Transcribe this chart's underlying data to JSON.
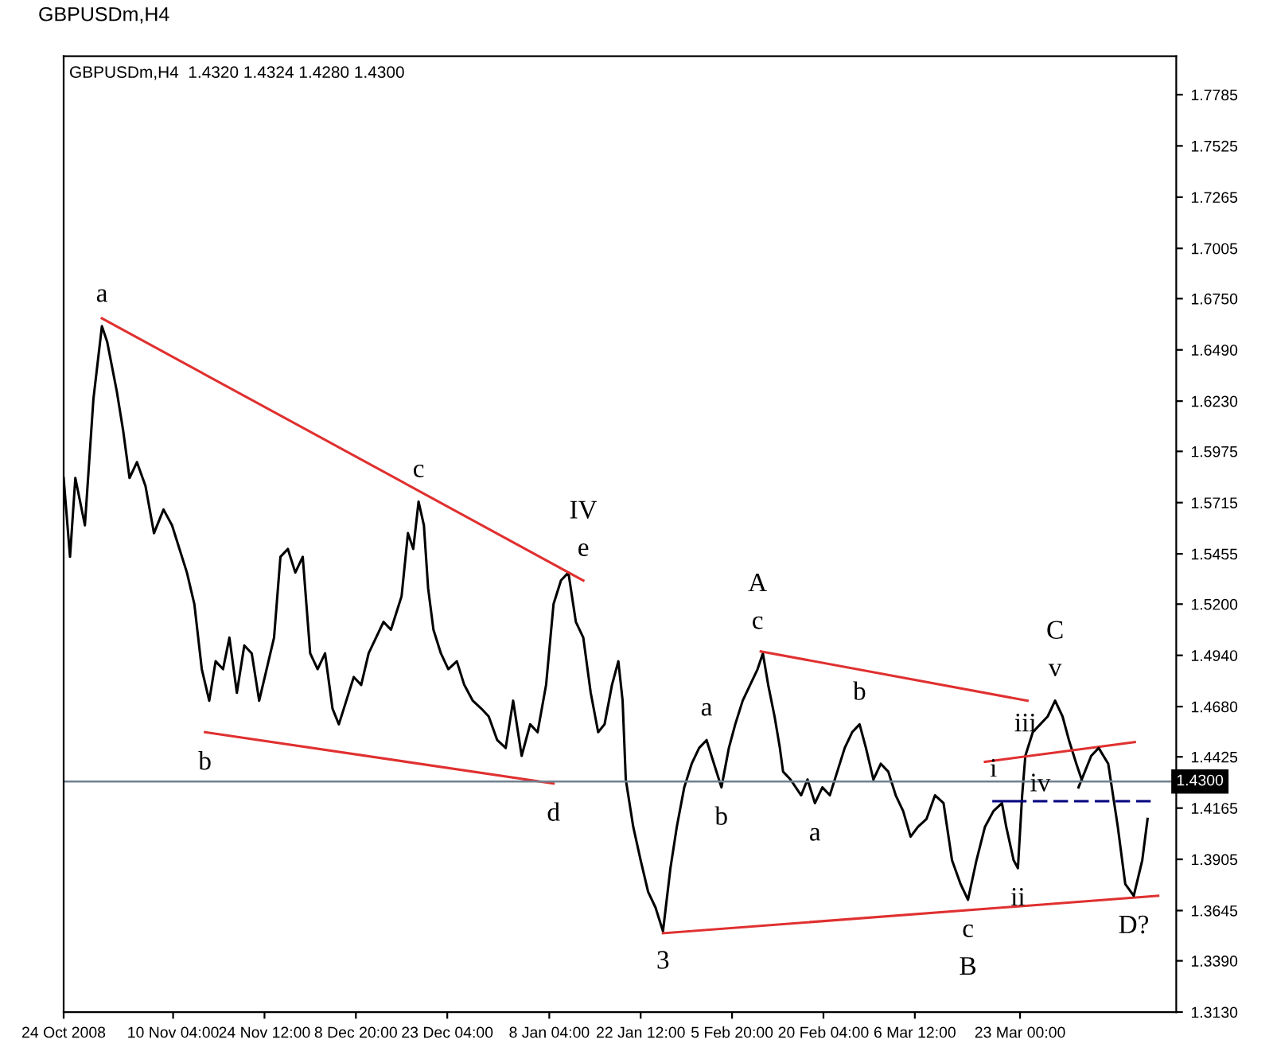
{
  "chart_data": {
    "type": "line",
    "title": "GBPUSDm,H4",
    "subtitle": "GBPUSDm,H4  1.4320 1.4324 1.4280 1.4300",
    "xlim": [
      "2008-10-24T00:00",
      "2009-04-16T12:00"
    ],
    "ylim": [
      1.313,
      1.798
    ],
    "xticks": [
      {
        "value": "2008-10-24T00:00",
        "label": "24 Oct 2008"
      },
      {
        "value": "2008-11-10T04:00",
        "label": "10 Nov 04:00"
      },
      {
        "value": "2008-11-24T12:00",
        "label": "24 Nov 12:00"
      },
      {
        "value": "2008-12-08T20:00",
        "label": "8 Dec 20:00"
      },
      {
        "value": "2008-12-23T04:00",
        "label": "23 Dec 04:00"
      },
      {
        "value": "2009-01-08T04:00",
        "label": "8 Jan 04:00"
      },
      {
        "value": "2009-01-22T12:00",
        "label": "22 Jan 12:00"
      },
      {
        "value": "2009-02-05T20:00",
        "label": "5 Feb 20:00"
      },
      {
        "value": "2009-02-20T04:00",
        "label": "20 Feb 04:00"
      },
      {
        "value": "2009-03-06T12:00",
        "label": "6 Mar 12:00"
      },
      {
        "value": "2009-03-23T00:00",
        "label": "23 Mar 00:00"
      }
    ],
    "yticks": [
      {
        "value": 1.313,
        "label": "1.3130"
      },
      {
        "value": 1.339,
        "label": "1.3390"
      },
      {
        "value": 1.3645,
        "label": "1.3645"
      },
      {
        "value": 1.3905,
        "label": "1.3905"
      },
      {
        "value": 1.4165,
        "label": "1.4165"
      },
      {
        "value": 1.4425,
        "label": "1.4425"
      },
      {
        "value": 1.468,
        "label": "1.4680"
      },
      {
        "value": 1.494,
        "label": "1.4940"
      },
      {
        "value": 1.52,
        "label": "1.5200"
      },
      {
        "value": 1.5455,
        "label": "1.5455"
      },
      {
        "value": 1.5715,
        "label": "1.5715"
      },
      {
        "value": 1.5975,
        "label": "1.5975"
      },
      {
        "value": 1.623,
        "label": "1.6230"
      },
      {
        "value": 1.649,
        "label": "1.6490"
      },
      {
        "value": 1.675,
        "label": "1.6750"
      },
      {
        "value": 1.7005,
        "label": "1.7005"
      },
      {
        "value": 1.7265,
        "label": "1.7265"
      },
      {
        "value": 1.7525,
        "label": "1.7525"
      },
      {
        "value": 1.7785,
        "label": "1.7785"
      }
    ],
    "grid": false,
    "legend": false,
    "ref_lines": [
      {
        "axis": "y",
        "value": 1.43,
        "label": "1.4300",
        "color": "#708090"
      }
    ],
    "series": [
      {
        "color": "#000000",
        "x": [
          "2008-10-24T00:00",
          "2008-10-25T00:00",
          "2008-10-25T20:00",
          "2008-10-27T08:00",
          "2008-10-28T16:00",
          "2008-10-30T00:00",
          "2008-10-30T20:00",
          "2008-11-01T08:00",
          "2008-11-02T08:00",
          "2008-11-03T08:00",
          "2008-11-04T12:00",
          "2008-11-05T20:00",
          "2008-11-07T04:00",
          "2008-11-08T16:00",
          "2008-11-10T00:00",
          "2008-11-11T04:00",
          "2008-11-12T08:00",
          "2008-11-13T12:00",
          "2008-11-14T16:00",
          "2008-11-15T20:00",
          "2008-11-16T20:00",
          "2008-11-18T00:00",
          "2008-11-19T00:00",
          "2008-11-20T04:00",
          "2008-11-21T08:00",
          "2008-11-22T12:00",
          "2008-11-23T16:00",
          "2008-11-24T20:00",
          "2008-11-26T00:00",
          "2008-11-27T00:00",
          "2008-11-28T04:00",
          "2008-11-29T08:00",
          "2008-11-30T12:00",
          "2008-12-01T16:00",
          "2008-12-02T20:00",
          "2008-12-04T00:00",
          "2008-12-05T04:00",
          "2008-12-06T04:00",
          "2008-12-07T08:00",
          "2008-12-08T12:00",
          "2008-12-09T16:00",
          "2008-12-10T20:00",
          "2008-12-12T00:00",
          "2008-12-13T04:00",
          "2008-12-14T08:00",
          "2008-12-16T00:00",
          "2008-12-17T00:00",
          "2008-12-17T20:00",
          "2008-12-18T16:00",
          "2008-12-19T12:00",
          "2008-12-20T04:00",
          "2008-12-21T00:00",
          "2008-12-22T04:00",
          "2008-12-23T08:00",
          "2008-12-24T16:00",
          "2008-12-25T20:00",
          "2008-12-27T04:00",
          "2008-12-28T12:00",
          "2008-12-29T16:00",
          "2008-12-31T00:00",
          "2009-01-01T08:00",
          "2009-01-02T12:00",
          "2009-01-03T20:00",
          "2009-01-05T04:00",
          "2009-01-06T08:00",
          "2009-01-07T16:00",
          "2009-01-08T20:00",
          "2009-01-10T00:00",
          "2009-01-11T04:00",
          "2009-01-12T08:00",
          "2009-01-13T12:00",
          "2009-01-14T16:00",
          "2009-01-15T20:00",
          "2009-01-16T20:00",
          "2009-01-18T00:00",
          "2009-01-19T00:00",
          "2009-01-19T16:00",
          "2009-01-20T04:00",
          "2009-01-21T08:00",
          "2009-01-22T12:00",
          "2009-01-23T16:00",
          "2009-01-24T20:00",
          "2009-01-26T00:00",
          "2009-01-27T04:00",
          "2009-01-28T04:00",
          "2009-01-29T08:00",
          "2009-01-30T12:00",
          "2009-01-31T16:00",
          "2009-02-01T20:00",
          "2009-02-03T00:00",
          "2009-02-04T04:00",
          "2009-02-05T08:00",
          "2009-02-06T08:00",
          "2009-02-07T12:00",
          "2009-02-08T16:00",
          "2009-02-09T20:00",
          "2009-02-10T16:00",
          "2009-02-11T12:00",
          "2009-02-12T12:00",
          "2009-02-13T08:00",
          "2009-02-13T20:00",
          "2009-02-15T00:00",
          "2009-02-16T16:00",
          "2009-02-17T16:00",
          "2009-02-18T20:00",
          "2009-02-20T00:00",
          "2009-02-21T04:00",
          "2009-02-22T08:00",
          "2009-02-23T12:00",
          "2009-02-24T16:00",
          "2009-02-25T20:00",
          "2009-02-26T20:00",
          "2009-02-28T00:00",
          "2009-03-01T04:00",
          "2009-03-02T08:00",
          "2009-03-03T12:00",
          "2009-03-04T16:00",
          "2009-03-05T20:00",
          "2009-03-07T00:00",
          "2009-03-08T08:00",
          "2009-03-09T16:00",
          "2009-03-11T00:00",
          "2009-03-12T08:00",
          "2009-03-13T16:00",
          "2009-03-14T20:00",
          "2009-03-16T04:00",
          "2009-03-17T12:00",
          "2009-03-18T20:00",
          "2009-03-20T04:00",
          "2009-03-20T20:00",
          "2009-03-22T00:00",
          "2009-03-22T16:00",
          "2009-03-23T08:00",
          "2009-03-23T20:00",
          "2009-03-25T00:00",
          "2009-03-26T04:00",
          "2009-03-27T08:00",
          "2009-03-28T12:00",
          "2009-03-29T16:00",
          "2009-03-30T16:00",
          "2009-03-31T20:00",
          "2009-04-01T16:00"
        ],
        "values": [
          1.584,
          1.544,
          1.584,
          1.56,
          1.624,
          1.661,
          1.653,
          1.628,
          1.608,
          1.584,
          1.592,
          1.58,
          1.556,
          1.568,
          1.56,
          1.548,
          1.536,
          1.52,
          1.487,
          1.471,
          1.491,
          1.487,
          1.503,
          1.475,
          1.499,
          1.495,
          1.471,
          1.487,
          1.503,
          1.544,
          1.548,
          1.536,
          1.544,
          1.495,
          1.487,
          1.495,
          1.467,
          1.459,
          1.471,
          1.483,
          1.479,
          1.495,
          1.503,
          1.511,
          1.507,
          1.524,
          1.556,
          1.548,
          1.572,
          1.56,
          1.528,
          1.507,
          1.495,
          1.487,
          1.491,
          1.479,
          1.471,
          1.467,
          1.463,
          1.451,
          1.447,
          1.471,
          1.443,
          1.459,
          1.455,
          1.479,
          1.52,
          1.532,
          1.536,
          1.511,
          1.503,
          1.475,
          1.455,
          1.459,
          1.479,
          1.491,
          1.471,
          1.431,
          1.407,
          1.39,
          1.374,
          1.366,
          1.354,
          1.386,
          1.407,
          1.427,
          1.439,
          1.447,
          1.451,
          1.439,
          1.427,
          1.447,
          1.459,
          1.471,
          1.479,
          1.487,
          1.495,
          1.479,
          1.463,
          1.447,
          1.435,
          1.431,
          1.423,
          1.431,
          1.419,
          1.427,
          1.423,
          1.435,
          1.447,
          1.455,
          1.459,
          1.447,
          1.431,
          1.439,
          1.435,
          1.423,
          1.415,
          1.402,
          1.407,
          1.411,
          1.423,
          1.419,
          1.39,
          1.378,
          1.37,
          1.39,
          1.407,
          1.415,
          1.419,
          1.407,
          1.39,
          1.386,
          1.423,
          1.443,
          1.455,
          1.459,
          1.463,
          1.471,
          1.463,
          1.451,
          1.439,
          1.431
        ]
      },
      {
        "color": "#e03030",
        "x": [
          "2008-10-30T00:00",
          "2009-01-13T12:00"
        ],
        "values": [
          1.665,
          1.532
        ]
      },
      {
        "color": "#e03030",
        "x": [
          "2008-11-15T04:00",
          "2009-01-08T20:00"
        ],
        "values": [
          1.455,
          1.429
        ]
      },
      {
        "color": "#e03030",
        "x": [
          "2009-02-10T08:00",
          "2009-03-24T04:00"
        ],
        "values": [
          1.496,
          1.471
        ]
      },
      {
        "color": "#e03030",
        "x": [
          "2009-01-26T00:00",
          "2009-04-13T16:00"
        ],
        "values": [
          1.353,
          1.372
        ]
      },
      {
        "color": "#e03030",
        "x": [
          "2009-03-17T12:00",
          "2009-04-10T00:00"
        ],
        "values": [
          1.44,
          1.45
        ]
      },
      {
        "color": "#000000",
        "x": [
          "2009-04-01T04:00",
          "2009-04-03T04:00",
          "2009-04-04T08:00",
          "2009-04-05T20:00",
          "2009-04-07T08:00",
          "2009-04-08T12:00",
          "2009-04-09T20:00",
          "2009-04-11T04:00",
          "2009-04-12T00:00"
        ],
        "values": [
          1.427,
          1.443,
          1.447,
          1.439,
          1.407,
          1.378,
          1.372,
          1.39,
          1.411
        ]
      },
      {
        "color": "#000080",
        "x": [
          "2009-03-18T20:00",
          "2009-03-23T20:00"
        ],
        "values": [
          1.42,
          1.42
        ]
      },
      {
        "color": "#000080",
        "line_style": "dashed",
        "x": [
          "2009-03-25T00:00",
          "2009-04-13T08:00"
        ],
        "values": [
          1.42,
          1.42
        ]
      }
    ],
    "annotations": [
      {
        "text": "a",
        "x": "2008-10-30T00:00",
        "y": 1.661
      },
      {
        "text": "b",
        "x": "2008-11-15T04:00",
        "y": 1.455
      },
      {
        "text": "c",
        "x": "2008-12-18T16:00",
        "y": 1.572
      },
      {
        "text": "e",
        "x": "2009-01-13T12:00",
        "y": 1.532
      },
      {
        "text": "IV",
        "x": "2009-01-13T12:00",
        "y": 1.532
      },
      {
        "text": "d",
        "x": "2009-01-08T20:00",
        "y": 1.429
      },
      {
        "text": "3",
        "x": "2009-01-26T00:00",
        "y": 1.354
      },
      {
        "text": "c",
        "x": "2009-02-09T20:00",
        "y": 1.495
      },
      {
        "text": "A",
        "x": "2009-02-09T20:00",
        "y": 1.495
      },
      {
        "text": "a",
        "x": "2009-02-01T20:00",
        "y": 1.451
      },
      {
        "text": "b",
        "x": "2009-02-04T04:00",
        "y": 1.427
      },
      {
        "text": "b",
        "x": "2009-02-25T20:00",
        "y": 1.459
      },
      {
        "text": "a",
        "x": "2009-02-18T20:00",
        "y": 1.419
      },
      {
        "text": "c",
        "x": "2009-03-14T20:00",
        "y": 1.37
      },
      {
        "text": "B",
        "x": "2009-03-14T20:00",
        "y": 1.37
      },
      {
        "text": "v",
        "x": "2009-03-28T12:00",
        "y": 1.471
      },
      {
        "text": "C",
        "x": "2009-03-28T12:00",
        "y": 1.471
      },
      {
        "text": "iii",
        "x": "2009-03-23T20:00",
        "y": 1.443
      },
      {
        "text": "i",
        "x": "2009-03-18T20:00",
        "y": 1.42
      },
      {
        "text": "iv",
        "x": "2009-03-26T04:00",
        "y": 1.444
      },
      {
        "text": "ii",
        "x": "2009-03-22T16:00",
        "y": 1.386
      },
      {
        "text": "D?",
        "x": "2009-04-09T20:00",
        "y": 1.372
      }
    ]
  }
}
